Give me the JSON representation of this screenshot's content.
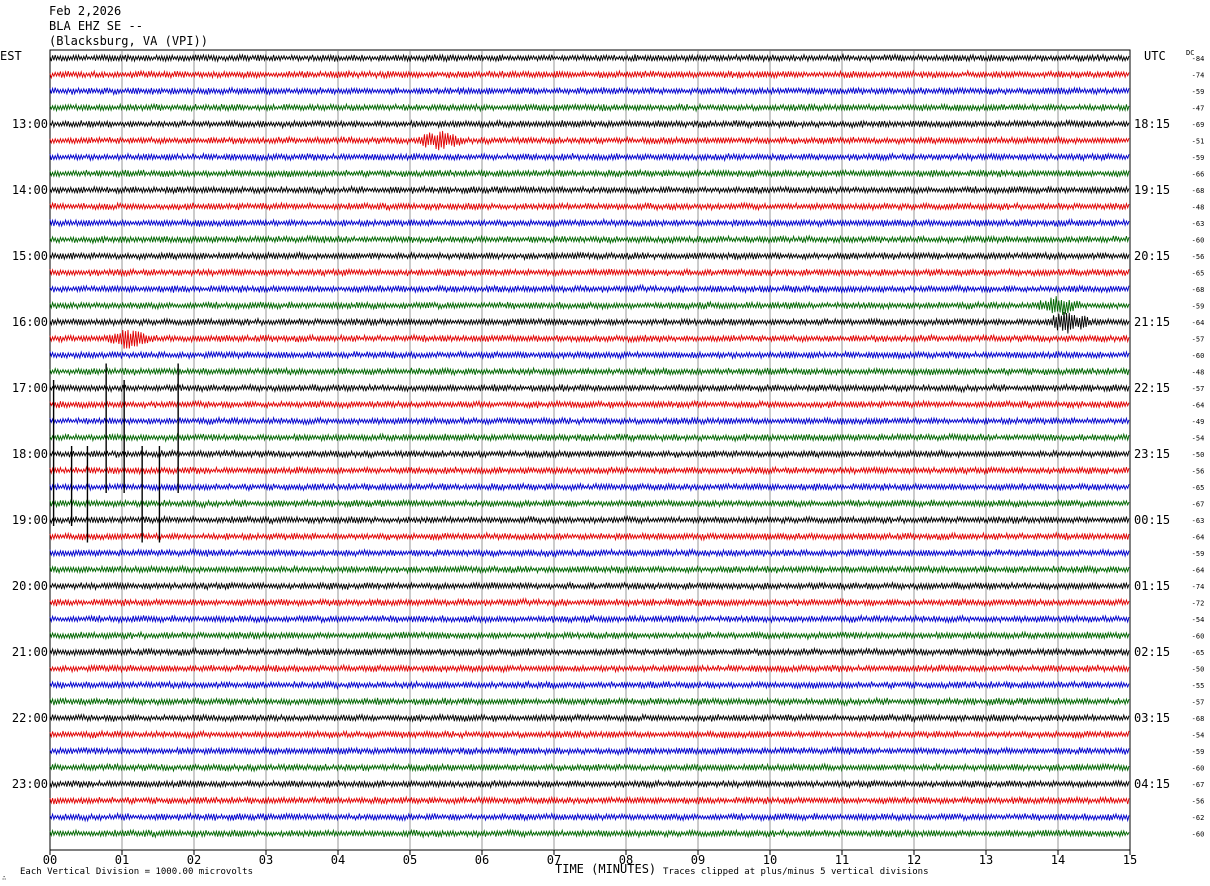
{
  "header": {
    "date": "Feb 2,2026",
    "station": "BLA EHZ SE --",
    "location": "(Blacksburg, VA (VPI))"
  },
  "axis_labels": {
    "left_timezone": "EST",
    "right_timezone": "UTC",
    "dc_label": "DC",
    "xlabel": "TIME (MINUTES)"
  },
  "footer": {
    "scale_note": "Each Vertical Division = 1000.00 microvolts",
    "clip_note": "Traces clipped at plus/minus 5 vertical divisions"
  },
  "colors": {
    "trace_cycle": [
      "#000000",
      "#e00000",
      "#0000cc",
      "#006600"
    ],
    "grid": "#7f7f7f"
  },
  "chart_data": {
    "type": "line",
    "title": "BLA EHZ SE --",
    "xlabel": "TIME (MINUTES)",
    "xlim": [
      0,
      15
    ],
    "x_ticks": [
      "00",
      "01",
      "02",
      "03",
      "04",
      "05",
      "06",
      "07",
      "08",
      "09",
      "10",
      "11",
      "12",
      "13",
      "14",
      "15"
    ],
    "left_hour_labels": [
      "13:00",
      "14:00",
      "15:00",
      "16:00",
      "17:00",
      "18:00",
      "19:00",
      "20:00",
      "21:00",
      "22:00",
      "23:00"
    ],
    "right_hour_labels": [
      "18:15",
      "19:15",
      "20:15",
      "21:15",
      "22:15",
      "23:15",
      "00:15",
      "01:15",
      "02:15",
      "03:15",
      "04:15"
    ],
    "first_hour_row": 4,
    "rows_per_hour": 4,
    "minutes_per_row": 15,
    "dc_offsets": [
      -84,
      -74,
      -59,
      -47,
      -69,
      -51,
      -59,
      -66,
      -68,
      -48,
      -63,
      -60,
      -56,
      -65,
      -68,
      -59,
      -64,
      -57,
      -60,
      -48,
      -57,
      -64,
      -49,
      -54,
      -50,
      -56,
      -65,
      -67,
      -63,
      -64,
      -59,
      -64,
      -74,
      -72,
      -54,
      -60,
      -65,
      -50,
      -55,
      -57,
      -68,
      -54,
      -59,
      -60,
      -67,
      -56,
      -62,
      -60
    ],
    "events": [
      {
        "row": 5,
        "minute": 5.4,
        "amplitude": 0.55
      },
      {
        "row": 17,
        "minute": 1.1,
        "amplitude": 0.5
      },
      {
        "row": 15,
        "minute": 14.0,
        "amplitude": 0.5
      },
      {
        "row": 16,
        "minute": 14.15,
        "amplitude": 0.6
      }
    ],
    "spikes": [
      {
        "minute": 0.05,
        "row_from": 20,
        "row_to": 28
      },
      {
        "minute": 0.3,
        "row_from": 24,
        "row_to": 28
      },
      {
        "minute": 0.52,
        "row_from": 24,
        "row_to": 29
      },
      {
        "minute": 0.78,
        "row_from": 19,
        "row_to": 26
      },
      {
        "minute": 1.03,
        "row_from": 20,
        "row_to": 26
      },
      {
        "minute": 1.28,
        "row_from": 24,
        "row_to": 29
      },
      {
        "minute": 1.52,
        "row_from": 24,
        "row_to": 29
      },
      {
        "minute": 1.78,
        "row_from": 19,
        "row_to": 26
      }
    ]
  }
}
